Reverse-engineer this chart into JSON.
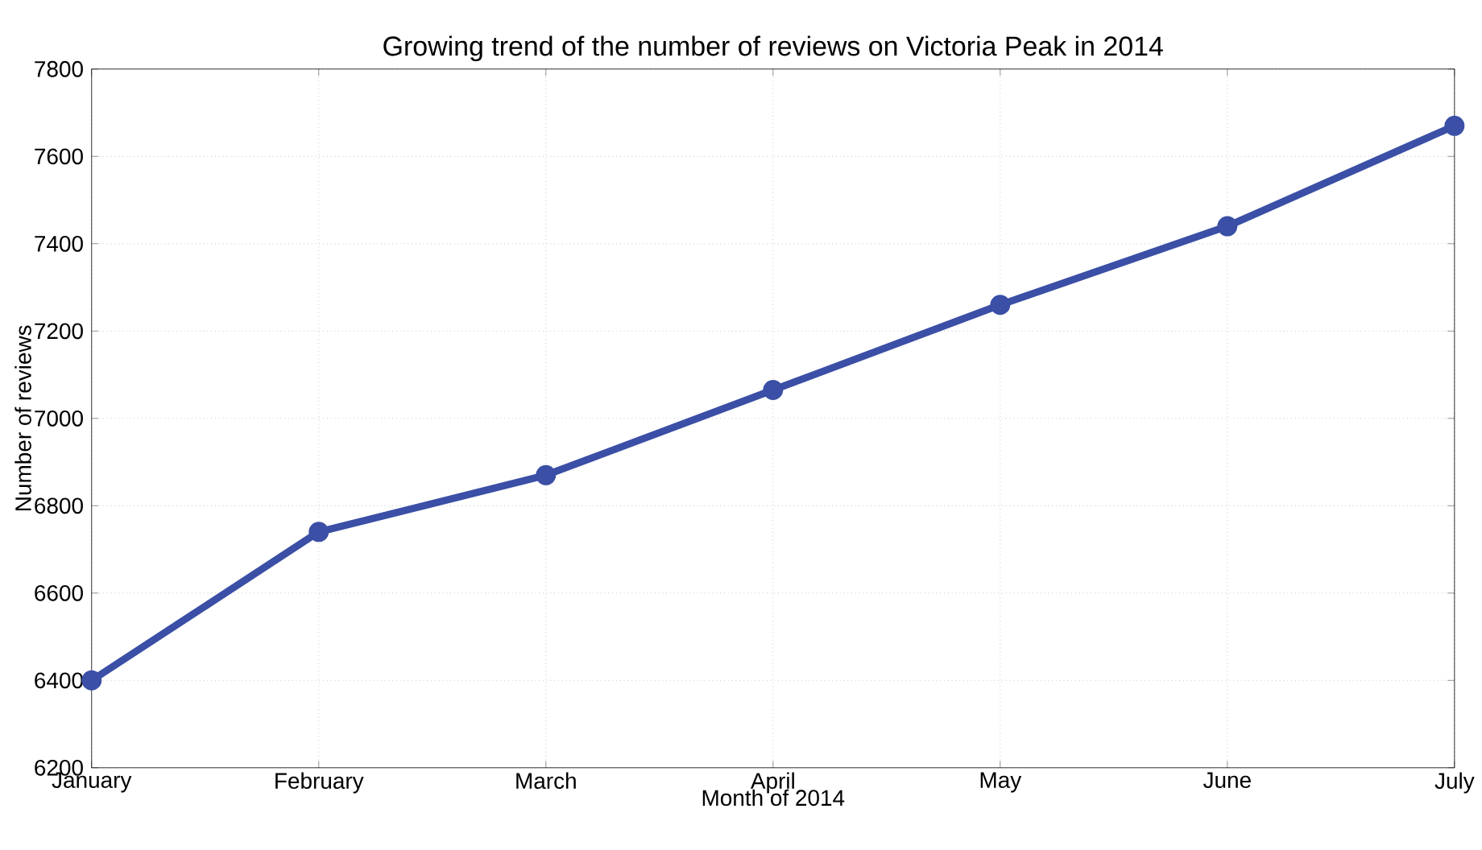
{
  "chart_data": {
    "type": "line",
    "title": "Growing trend of the number of reviews on Victoria Peak in 2014",
    "xlabel": "Month of 2014",
    "ylabel": "Number of reviews",
    "categories": [
      "January",
      "February",
      "March",
      "April",
      "May",
      "June",
      "July"
    ],
    "values": [
      6400,
      6740,
      6870,
      7065,
      7260,
      7440,
      7670
    ],
    "color": "#3a4fa5",
    "marker": "circle",
    "line_style": "solid",
    "ylim": [
      6200,
      7800
    ],
    "yticks": [
      6200,
      6400,
      6600,
      6800,
      7000,
      7200,
      7400,
      7600,
      7800
    ],
    "grid": true
  }
}
